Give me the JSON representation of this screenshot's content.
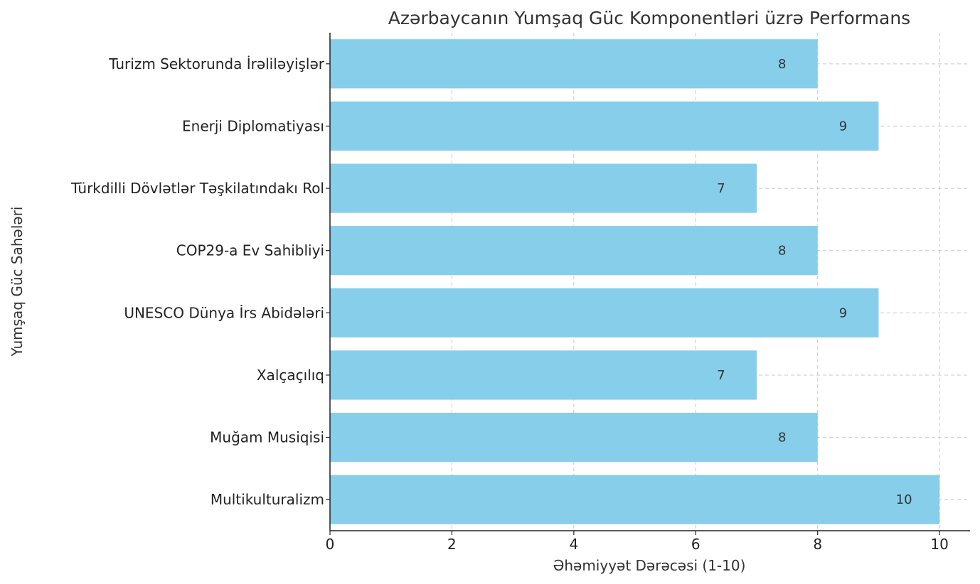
{
  "chart_data": {
    "type": "bar",
    "orientation": "horizontal",
    "title": "Azərbaycanın Yumşaq Güc Komponentləri üzrə Performans",
    "xlabel": "Əhəmiyyət Dərəcəsi (1-10)",
    "ylabel": "Yumşaq Güc Sahələri",
    "categories": [
      "Multikulturalizm",
      "Muğam Musiqisi",
      "Xalçaçılıq",
      "UNESCO Dünya İrs Abidələri",
      "COP29-a Ev Sahibliyi",
      "Türkdilli Dövlətlər Təşkilatındakı Rol",
      "Enerji Diplomatiyası",
      "Turizm Sektorunda İrəliləyişlər"
    ],
    "values": [
      10,
      8,
      7,
      9,
      8,
      7,
      9,
      8
    ],
    "xlim": [
      0,
      10.5
    ],
    "xticks": [
      "0",
      "2",
      "4",
      "6",
      "8",
      "10"
    ],
    "grid": true,
    "colors": {
      "bar": "#87CEEB",
      "grid": "#c8c8c8",
      "axis": "#222222"
    }
  }
}
